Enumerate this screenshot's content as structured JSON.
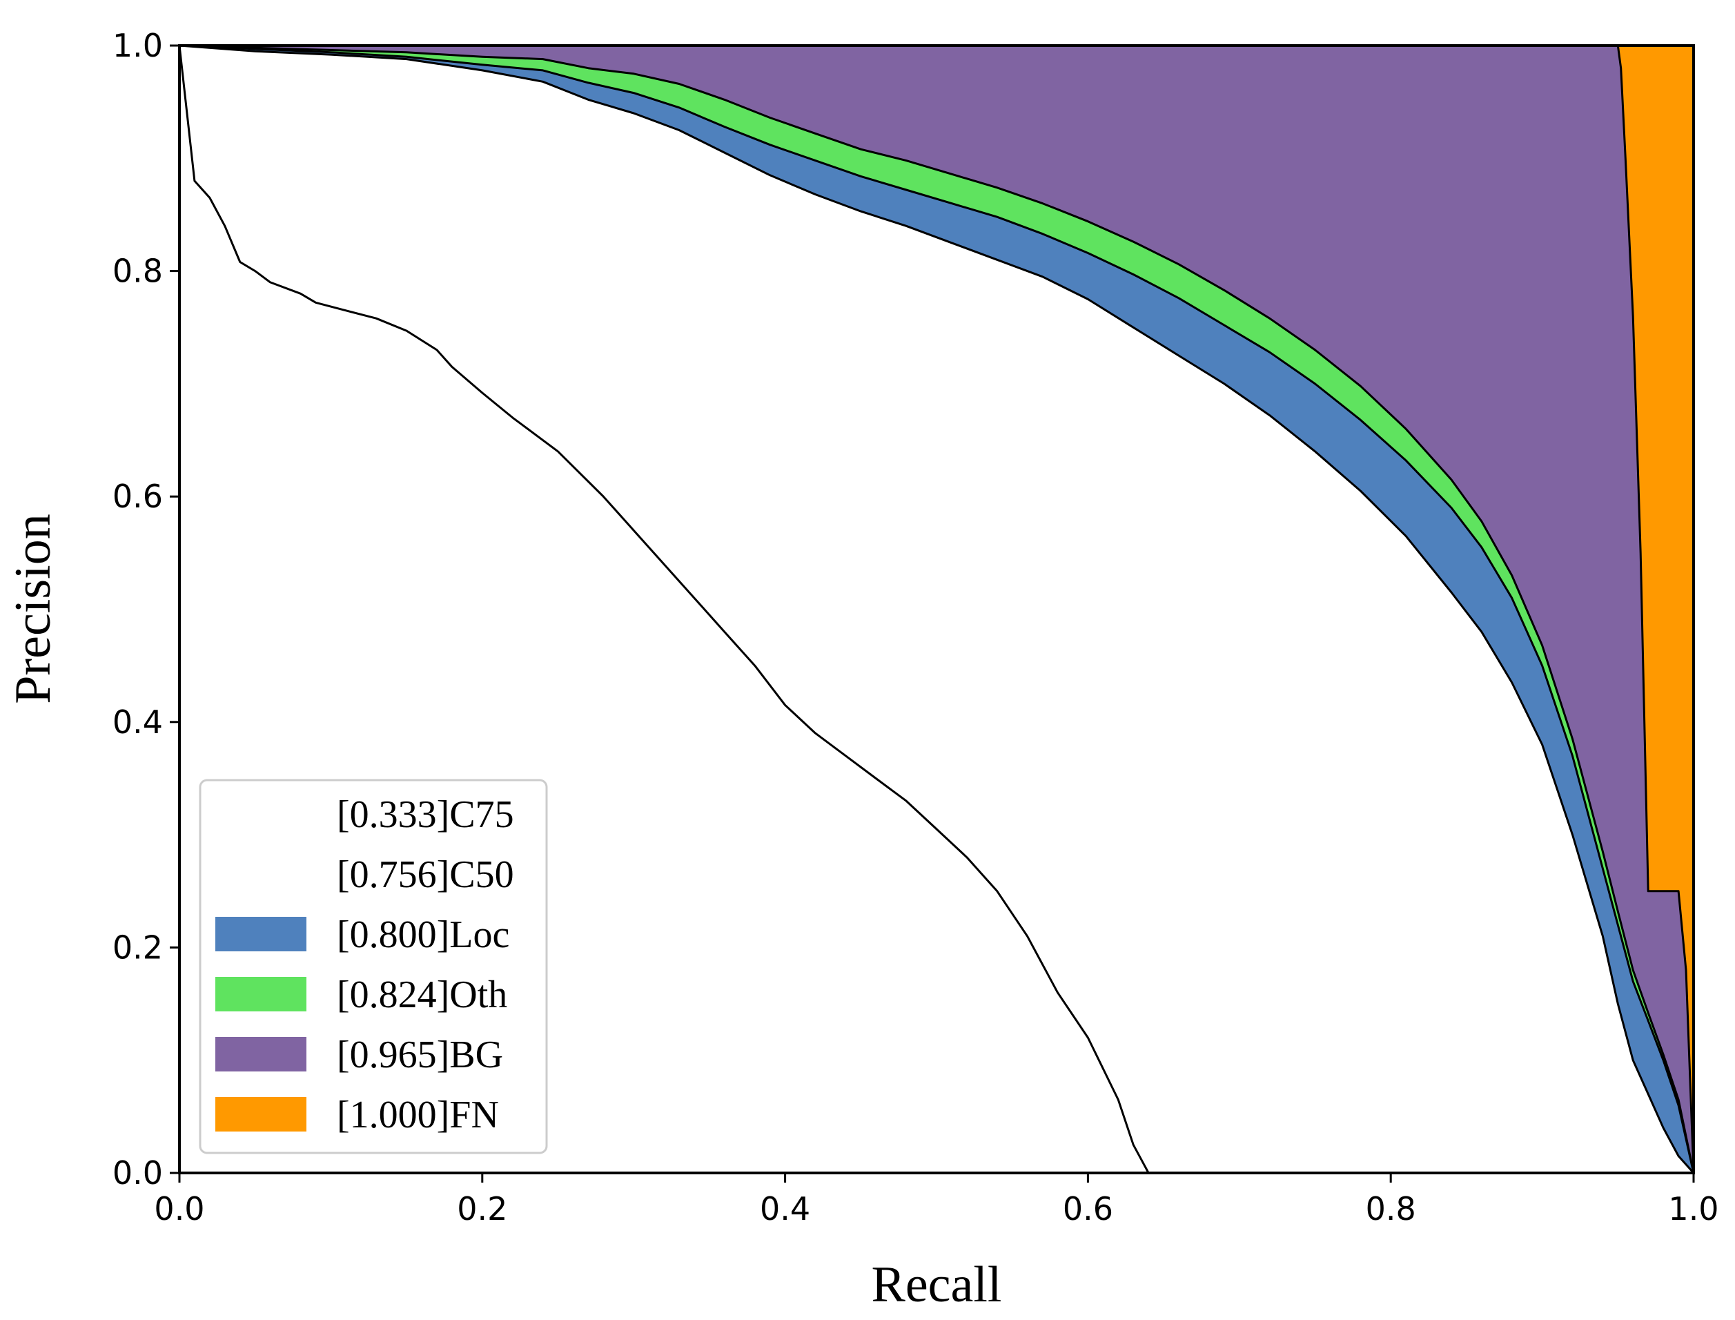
{
  "chart_data": {
    "type": "area",
    "title": "",
    "xlabel": "Recall",
    "ylabel": "Precision",
    "xlim": [
      0,
      1
    ],
    "ylim": [
      0,
      1
    ],
    "xticks": [
      "0.0",
      "0.2",
      "0.4",
      "0.6",
      "0.8",
      "1.0"
    ],
    "yticks": [
      "0.0",
      "0.2",
      "0.4",
      "0.6",
      "0.8",
      "1.0"
    ],
    "grid": false,
    "legend_position": "lower-left",
    "colors": {
      "C75": "#ffffff",
      "C50": "#ffffff",
      "Loc": "#4f81bd",
      "Oth": "#5fe35f",
      "BG": "#8064a2",
      "FN": "#ff9900",
      "line": "#000000"
    },
    "series": [
      {
        "name": "C75",
        "label": "[0.333]C75",
        "points": [
          [
            0,
            1
          ],
          [
            0.01,
            0.88
          ],
          [
            0.02,
            0.865
          ],
          [
            0.03,
            0.84
          ],
          [
            0.04,
            0.808
          ],
          [
            0.05,
            0.8
          ],
          [
            0.06,
            0.79
          ],
          [
            0.08,
            0.78
          ],
          [
            0.09,
            0.772
          ],
          [
            0.11,
            0.765
          ],
          [
            0.13,
            0.758
          ],
          [
            0.15,
            0.747
          ],
          [
            0.17,
            0.73
          ],
          [
            0.18,
            0.715
          ],
          [
            0.2,
            0.692
          ],
          [
            0.22,
            0.67
          ],
          [
            0.25,
            0.64
          ],
          [
            0.28,
            0.6
          ],
          [
            0.3,
            0.57
          ],
          [
            0.32,
            0.54
          ],
          [
            0.34,
            0.51
          ],
          [
            0.36,
            0.48
          ],
          [
            0.38,
            0.45
          ],
          [
            0.4,
            0.415
          ],
          [
            0.42,
            0.39
          ],
          [
            0.44,
            0.37
          ],
          [
            0.46,
            0.35
          ],
          [
            0.48,
            0.33
          ],
          [
            0.5,
            0.305
          ],
          [
            0.52,
            0.28
          ],
          [
            0.54,
            0.25
          ],
          [
            0.56,
            0.21
          ],
          [
            0.58,
            0.16
          ],
          [
            0.6,
            0.12
          ],
          [
            0.62,
            0.065
          ],
          [
            0.63,
            0.025
          ],
          [
            0.64,
            0
          ]
        ]
      },
      {
        "name": "C50",
        "label": "[0.756]C50",
        "points": [
          [
            0,
            1
          ],
          [
            0.05,
            0.995
          ],
          [
            0.1,
            0.992
          ],
          [
            0.15,
            0.988
          ],
          [
            0.2,
            0.978
          ],
          [
            0.24,
            0.968
          ],
          [
            0.27,
            0.952
          ],
          [
            0.3,
            0.94
          ],
          [
            0.33,
            0.925
          ],
          [
            0.36,
            0.905
          ],
          [
            0.39,
            0.885
          ],
          [
            0.42,
            0.868
          ],
          [
            0.45,
            0.853
          ],
          [
            0.48,
            0.84
          ],
          [
            0.51,
            0.825
          ],
          [
            0.54,
            0.81
          ],
          [
            0.57,
            0.795
          ],
          [
            0.6,
            0.775
          ],
          [
            0.63,
            0.75
          ],
          [
            0.66,
            0.725
          ],
          [
            0.69,
            0.7
          ],
          [
            0.72,
            0.672
          ],
          [
            0.75,
            0.64
          ],
          [
            0.78,
            0.605
          ],
          [
            0.81,
            0.565
          ],
          [
            0.84,
            0.515
          ],
          [
            0.86,
            0.48
          ],
          [
            0.88,
            0.435
          ],
          [
            0.9,
            0.38
          ],
          [
            0.92,
            0.3
          ],
          [
            0.94,
            0.21
          ],
          [
            0.95,
            0.15
          ],
          [
            0.96,
            0.1
          ],
          [
            0.97,
            0.07
          ],
          [
            0.98,
            0.04
          ],
          [
            0.99,
            0.015
          ],
          [
            1,
            0
          ]
        ]
      },
      {
        "name": "Loc",
        "label": "[0.800]Loc",
        "points": [
          [
            0,
            1
          ],
          [
            0.05,
            0.997
          ],
          [
            0.1,
            0.994
          ],
          [
            0.15,
            0.99
          ],
          [
            0.2,
            0.983
          ],
          [
            0.24,
            0.978
          ],
          [
            0.27,
            0.967
          ],
          [
            0.3,
            0.958
          ],
          [
            0.33,
            0.945
          ],
          [
            0.36,
            0.928
          ],
          [
            0.39,
            0.912
          ],
          [
            0.42,
            0.898
          ],
          [
            0.45,
            0.884
          ],
          [
            0.48,
            0.872
          ],
          [
            0.51,
            0.86
          ],
          [
            0.54,
            0.848
          ],
          [
            0.57,
            0.833
          ],
          [
            0.6,
            0.816
          ],
          [
            0.63,
            0.797
          ],
          [
            0.66,
            0.776
          ],
          [
            0.69,
            0.752
          ],
          [
            0.72,
            0.728
          ],
          [
            0.75,
            0.7
          ],
          [
            0.78,
            0.668
          ],
          [
            0.81,
            0.632
          ],
          [
            0.84,
            0.59
          ],
          [
            0.86,
            0.555
          ],
          [
            0.88,
            0.51
          ],
          [
            0.9,
            0.45
          ],
          [
            0.92,
            0.37
          ],
          [
            0.94,
            0.27
          ],
          [
            0.95,
            0.22
          ],
          [
            0.96,
            0.17
          ],
          [
            0.97,
            0.135
          ],
          [
            0.98,
            0.1
          ],
          [
            0.99,
            0.06
          ],
          [
            1,
            0
          ]
        ]
      },
      {
        "name": "Oth",
        "label": "[0.824]Oth",
        "points": [
          [
            0,
            1
          ],
          [
            0.05,
            0.998
          ],
          [
            0.1,
            0.996
          ],
          [
            0.15,
            0.994
          ],
          [
            0.2,
            0.99
          ],
          [
            0.24,
            0.988
          ],
          [
            0.27,
            0.98
          ],
          [
            0.3,
            0.975
          ],
          [
            0.33,
            0.966
          ],
          [
            0.36,
            0.952
          ],
          [
            0.39,
            0.936
          ],
          [
            0.42,
            0.922
          ],
          [
            0.45,
            0.908
          ],
          [
            0.48,
            0.898
          ],
          [
            0.51,
            0.886
          ],
          [
            0.54,
            0.874
          ],
          [
            0.57,
            0.86
          ],
          [
            0.6,
            0.844
          ],
          [
            0.63,
            0.826
          ],
          [
            0.66,
            0.806
          ],
          [
            0.69,
            0.783
          ],
          [
            0.72,
            0.758
          ],
          [
            0.75,
            0.73
          ],
          [
            0.78,
            0.698
          ],
          [
            0.81,
            0.66
          ],
          [
            0.84,
            0.615
          ],
          [
            0.86,
            0.578
          ],
          [
            0.88,
            0.53
          ],
          [
            0.9,
            0.468
          ],
          [
            0.92,
            0.385
          ],
          [
            0.94,
            0.285
          ],
          [
            0.95,
            0.232
          ],
          [
            0.96,
            0.18
          ],
          [
            0.97,
            0.142
          ],
          [
            0.98,
            0.105
          ],
          [
            0.99,
            0.065
          ],
          [
            1,
            0
          ]
        ]
      },
      {
        "name": "BG",
        "label": "[0.965]BG",
        "points": [
          [
            0,
            1
          ],
          [
            0.95,
            1
          ],
          [
            0.952,
            0.98
          ],
          [
            0.955,
            0.9
          ],
          [
            0.96,
            0.76
          ],
          [
            0.965,
            0.55
          ],
          [
            0.97,
            0.25
          ],
          [
            0.975,
            0.25
          ],
          [
            0.99,
            0.25
          ],
          [
            0.995,
            0.18
          ],
          [
            1,
            0
          ]
        ]
      },
      {
        "name": "FN",
        "label": "[1.000]FN",
        "points": [
          [
            0,
            1
          ],
          [
            1,
            1
          ],
          [
            1,
            0
          ]
        ]
      }
    ]
  }
}
